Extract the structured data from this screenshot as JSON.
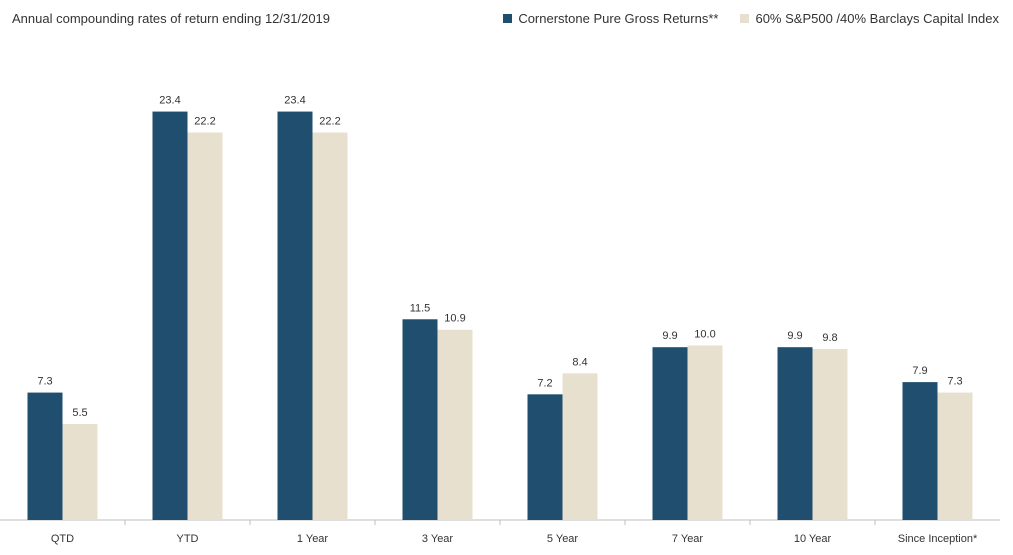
{
  "chart_data": {
    "type": "bar",
    "title": "Annual compounding rates of return ending 12/31/2019",
    "categories": [
      "QTD",
      "YTD",
      "1 Year",
      "3 Year",
      "5 Year",
      "7 Year",
      "10 Year",
      "Since Inception*"
    ],
    "series": [
      {
        "name": "Cornerstone Pure Gross Returns**",
        "color": "#1f4e6e",
        "values": [
          7.3,
          23.4,
          23.4,
          11.5,
          7.2,
          9.9,
          9.9,
          7.9
        ],
        "labels": [
          "7.3",
          "23.4",
          "23.4",
          "11.5",
          "7.2",
          "9.9",
          "9.9",
          "7.9"
        ]
      },
      {
        "name": "60% S&P500 /40% Barclays Capital Index",
        "color": "#e8e0cf",
        "values": [
          5.5,
          22.2,
          22.2,
          10.9,
          8.4,
          10.0,
          9.8,
          7.3
        ],
        "labels": [
          "5.5",
          "22.2",
          "22.2",
          "10.9",
          "8.4",
          "10.0",
          "9.8",
          "7.3"
        ]
      }
    ],
    "ylim": [
      0,
      27.5
    ],
    "grid": false,
    "legend_position": "top-right"
  }
}
